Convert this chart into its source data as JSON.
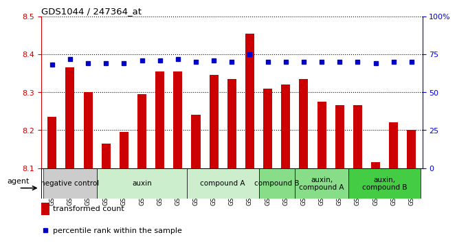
{
  "title": "GDS1044 / 247364_at",
  "samples": [
    "GSM25858",
    "GSM25859",
    "GSM25860",
    "GSM25861",
    "GSM25862",
    "GSM25863",
    "GSM25864",
    "GSM25865",
    "GSM25866",
    "GSM25867",
    "GSM25868",
    "GSM25869",
    "GSM25870",
    "GSM25871",
    "GSM25872",
    "GSM25873",
    "GSM25874",
    "GSM25875",
    "GSM25876",
    "GSM25877",
    "GSM25878"
  ],
  "bar_values": [
    8.235,
    8.365,
    8.3,
    8.165,
    8.195,
    8.295,
    8.355,
    8.355,
    8.24,
    8.345,
    8.335,
    8.455,
    8.31,
    8.32,
    8.335,
    8.275,
    8.265,
    8.265,
    8.115,
    8.22,
    8.2
  ],
  "percentile_values": [
    68,
    72,
    69,
    69,
    69,
    71,
    71,
    72,
    70,
    71,
    70,
    75,
    70,
    70,
    70,
    70,
    70,
    70,
    69,
    70,
    70
  ],
  "ylim_left": [
    8.1,
    8.5
  ],
  "ylim_right": [
    0,
    100
  ],
  "yticks_left": [
    8.1,
    8.2,
    8.3,
    8.4,
    8.5
  ],
  "yticks_right": [
    0,
    25,
    50,
    75,
    100
  ],
  "bar_color": "#cc0000",
  "dot_color": "#0000cc",
  "groups": [
    {
      "label": "negative control",
      "start": 0,
      "end": 3,
      "color": "#cccccc"
    },
    {
      "label": "auxin",
      "start": 3,
      "end": 8,
      "color": "#cceecc"
    },
    {
      "label": "compound A",
      "start": 8,
      "end": 12,
      "color": "#cceecc"
    },
    {
      "label": "compound B",
      "start": 12,
      "end": 14,
      "color": "#88dd88"
    },
    {
      "label": "auxin,\ncompound A",
      "start": 14,
      "end": 17,
      "color": "#88dd88"
    },
    {
      "label": "auxin,\ncompound B",
      "start": 17,
      "end": 21,
      "color": "#44cc44"
    }
  ],
  "legend_bar_label": "transformed count",
  "legend_dot_label": "percentile rank within the sample",
  "agent_label": "agent",
  "left_axis_color": "#cc0000",
  "right_axis_color": "#0000cc"
}
